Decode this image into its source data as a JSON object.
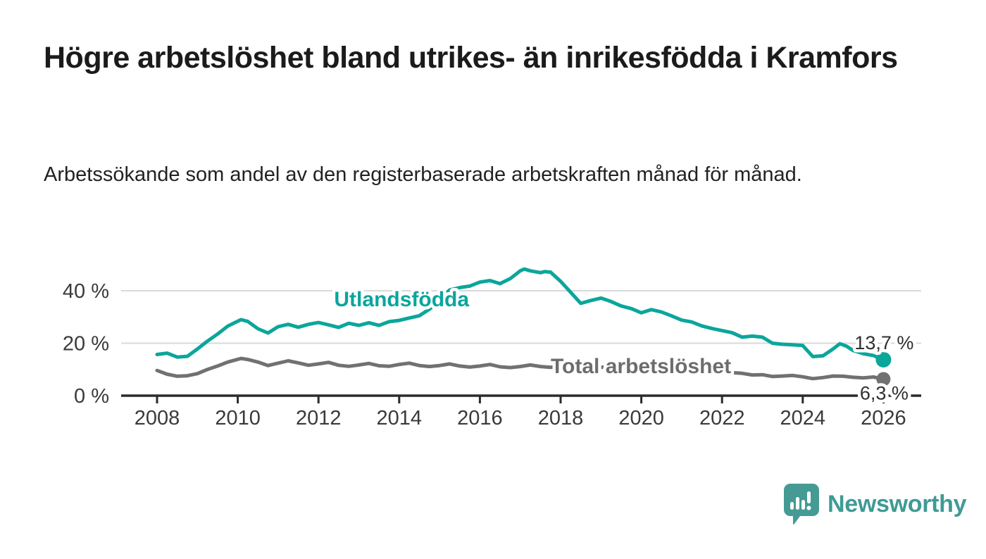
{
  "page": {
    "title": "Högre arbetslöshet bland utrikes- än inrikesfödda i Kramfors",
    "subtitle": "Arbetssökande som andel av den registerbaserade arbetskraften månad för månad."
  },
  "colors": {
    "series_utlandsfodda": "#0aa69b",
    "series_total": "#717171",
    "series_total_label": "#6e6c70",
    "grid": "#d9d9d9",
    "axis": "#2b2b2b",
    "tick_text": "#3a3a3a",
    "value_label_text": "#2f2f2f",
    "title_text": "#1b1b1b",
    "brand_teal": "#3f9a95"
  },
  "chart_data": {
    "type": "line",
    "title": "",
    "xlabel": "",
    "ylabel": "",
    "y_unit": "percent of registered labour force",
    "x_unit": "year, monthly observations",
    "ylim": [
      0,
      50
    ],
    "xlim": [
      2007.9,
      2026.9
    ],
    "grid": "horizontal-only",
    "legend": "inline-labels-on-lines",
    "yticks": [
      {
        "value": 0,
        "label": "0 %"
      },
      {
        "value": 20,
        "label": "20 %"
      },
      {
        "value": 40,
        "label": "40 %"
      }
    ],
    "xticks": [
      {
        "value": 2008,
        "label": "2008"
      },
      {
        "value": 2010,
        "label": "2010"
      },
      {
        "value": 2012,
        "label": "2012"
      },
      {
        "value": 2014,
        "label": "2014"
      },
      {
        "value": 2016,
        "label": "2016"
      },
      {
        "value": 2018,
        "label": "2018"
      },
      {
        "value": 2020,
        "label": "2020"
      },
      {
        "value": 2022,
        "label": "2022"
      },
      {
        "value": 2024,
        "label": "2024"
      },
      {
        "value": 2026,
        "label": "2026"
      }
    ],
    "series": [
      {
        "name": "Utlandsfödda",
        "color": "#0aa69b",
        "end_value": 13.7,
        "end_label": "13,7 %",
        "label_anchor": {
          "x": 2014.06,
          "y": 36.8
        },
        "points": [
          [
            2008.0,
            15.7
          ],
          [
            2008.25,
            16.2
          ],
          [
            2008.5,
            14.7
          ],
          [
            2008.75,
            15.0
          ],
          [
            2009.0,
            17.8
          ],
          [
            2009.25,
            20.8
          ],
          [
            2009.5,
            23.5
          ],
          [
            2009.75,
            26.5
          ],
          [
            2010.08,
            29.0
          ],
          [
            2010.25,
            28.3
          ],
          [
            2010.5,
            25.5
          ],
          [
            2010.75,
            23.9
          ],
          [
            2011.0,
            26.3
          ],
          [
            2011.25,
            27.2
          ],
          [
            2011.5,
            26.1
          ],
          [
            2011.75,
            27.2
          ],
          [
            2012.0,
            27.9
          ],
          [
            2012.25,
            27.0
          ],
          [
            2012.5,
            26.0
          ],
          [
            2012.75,
            27.6
          ],
          [
            2013.0,
            26.8
          ],
          [
            2013.25,
            27.8
          ],
          [
            2013.5,
            26.8
          ],
          [
            2013.75,
            28.2
          ],
          [
            2014.0,
            28.7
          ],
          [
            2014.25,
            29.6
          ],
          [
            2014.5,
            30.5
          ],
          [
            2014.75,
            33.0
          ],
          [
            2015.0,
            36.5
          ],
          [
            2015.25,
            40.3
          ],
          [
            2015.5,
            41.2
          ],
          [
            2015.75,
            41.8
          ],
          [
            2016.0,
            43.3
          ],
          [
            2016.25,
            43.9
          ],
          [
            2016.5,
            42.7
          ],
          [
            2016.75,
            44.6
          ],
          [
            2017.0,
            47.6
          ],
          [
            2017.1,
            48.3
          ],
          [
            2017.25,
            47.6
          ],
          [
            2017.5,
            46.9
          ],
          [
            2017.6,
            47.3
          ],
          [
            2017.75,
            47.1
          ],
          [
            2018.0,
            43.6
          ],
          [
            2018.25,
            39.4
          ],
          [
            2018.5,
            35.2
          ],
          [
            2018.75,
            36.3
          ],
          [
            2019.0,
            37.2
          ],
          [
            2019.25,
            35.9
          ],
          [
            2019.5,
            34.2
          ],
          [
            2019.75,
            33.2
          ],
          [
            2020.0,
            31.6
          ],
          [
            2020.25,
            32.8
          ],
          [
            2020.5,
            31.9
          ],
          [
            2020.75,
            30.4
          ],
          [
            2021.0,
            28.8
          ],
          [
            2021.25,
            28.1
          ],
          [
            2021.5,
            26.6
          ],
          [
            2021.75,
            25.6
          ],
          [
            2022.0,
            24.8
          ],
          [
            2022.25,
            24.0
          ],
          [
            2022.5,
            22.3
          ],
          [
            2022.75,
            22.7
          ],
          [
            2023.0,
            22.3
          ],
          [
            2023.25,
            20.0
          ],
          [
            2023.5,
            19.6
          ],
          [
            2023.75,
            19.4
          ],
          [
            2024.0,
            19.1
          ],
          [
            2024.25,
            14.9
          ],
          [
            2024.5,
            15.2
          ],
          [
            2024.75,
            17.8
          ],
          [
            2024.92,
            19.8
          ],
          [
            2025.08,
            18.9
          ],
          [
            2025.25,
            17.2
          ],
          [
            2025.5,
            16.0
          ],
          [
            2025.75,
            15.3
          ],
          [
            2026.0,
            13.7
          ]
        ]
      },
      {
        "name": "Total arbetslöshet",
        "color": "#717171",
        "end_value": 6.3,
        "end_label": "6,3 %",
        "label_anchor": {
          "x": 2019.99,
          "y": 11.3
        },
        "points": [
          [
            2008.0,
            9.6
          ],
          [
            2008.25,
            8.2
          ],
          [
            2008.5,
            7.4
          ],
          [
            2008.75,
            7.6
          ],
          [
            2009.0,
            8.4
          ],
          [
            2009.25,
            10.0
          ],
          [
            2009.5,
            11.3
          ],
          [
            2009.75,
            12.8
          ],
          [
            2010.08,
            14.2
          ],
          [
            2010.25,
            13.8
          ],
          [
            2010.5,
            12.8
          ],
          [
            2010.75,
            11.5
          ],
          [
            2011.0,
            12.4
          ],
          [
            2011.25,
            13.3
          ],
          [
            2011.5,
            12.5
          ],
          [
            2011.75,
            11.6
          ],
          [
            2012.0,
            12.1
          ],
          [
            2012.25,
            12.7
          ],
          [
            2012.5,
            11.6
          ],
          [
            2012.75,
            11.2
          ],
          [
            2013.0,
            11.7
          ],
          [
            2013.25,
            12.3
          ],
          [
            2013.5,
            11.4
          ],
          [
            2013.75,
            11.2
          ],
          [
            2014.0,
            11.9
          ],
          [
            2014.25,
            12.4
          ],
          [
            2014.5,
            11.5
          ],
          [
            2014.75,
            11.1
          ],
          [
            2015.0,
            11.5
          ],
          [
            2015.25,
            12.1
          ],
          [
            2015.5,
            11.3
          ],
          [
            2015.75,
            10.9
          ],
          [
            2016.0,
            11.3
          ],
          [
            2016.25,
            11.9
          ],
          [
            2016.5,
            11.0
          ],
          [
            2016.75,
            10.7
          ],
          [
            2017.0,
            11.1
          ],
          [
            2017.25,
            11.7
          ],
          [
            2017.5,
            11.1
          ],
          [
            2017.75,
            10.8
          ],
          [
            2018.0,
            11.1
          ],
          [
            2018.25,
            11.5
          ],
          [
            2018.5,
            10.8
          ],
          [
            2018.75,
            10.5
          ],
          [
            2019.0,
            10.8
          ],
          [
            2019.25,
            11.1
          ],
          [
            2019.5,
            10.4
          ],
          [
            2019.75,
            10.2
          ],
          [
            2020.0,
            10.6
          ],
          [
            2020.25,
            11.2
          ],
          [
            2020.5,
            10.6
          ],
          [
            2020.75,
            10.3
          ],
          [
            2021.0,
            10.5
          ],
          [
            2021.25,
            10.1
          ],
          [
            2021.5,
            9.6
          ],
          [
            2021.75,
            9.2
          ],
          [
            2022.0,
            9.1
          ],
          [
            2022.25,
            8.8
          ],
          [
            2022.5,
            8.5
          ],
          [
            2022.75,
            7.9
          ],
          [
            2023.0,
            8.0
          ],
          [
            2023.25,
            7.3
          ],
          [
            2023.5,
            7.5
          ],
          [
            2023.75,
            7.7
          ],
          [
            2024.0,
            7.2
          ],
          [
            2024.25,
            6.5
          ],
          [
            2024.5,
            6.9
          ],
          [
            2024.75,
            7.5
          ],
          [
            2025.0,
            7.4
          ],
          [
            2025.25,
            7.0
          ],
          [
            2025.5,
            6.8
          ],
          [
            2025.75,
            7.1
          ],
          [
            2026.0,
            6.3
          ]
        ]
      }
    ]
  },
  "branding": {
    "logo_text": "Newsworthy",
    "logo_icon": "bar-chart-speech-bubble-icon"
  }
}
